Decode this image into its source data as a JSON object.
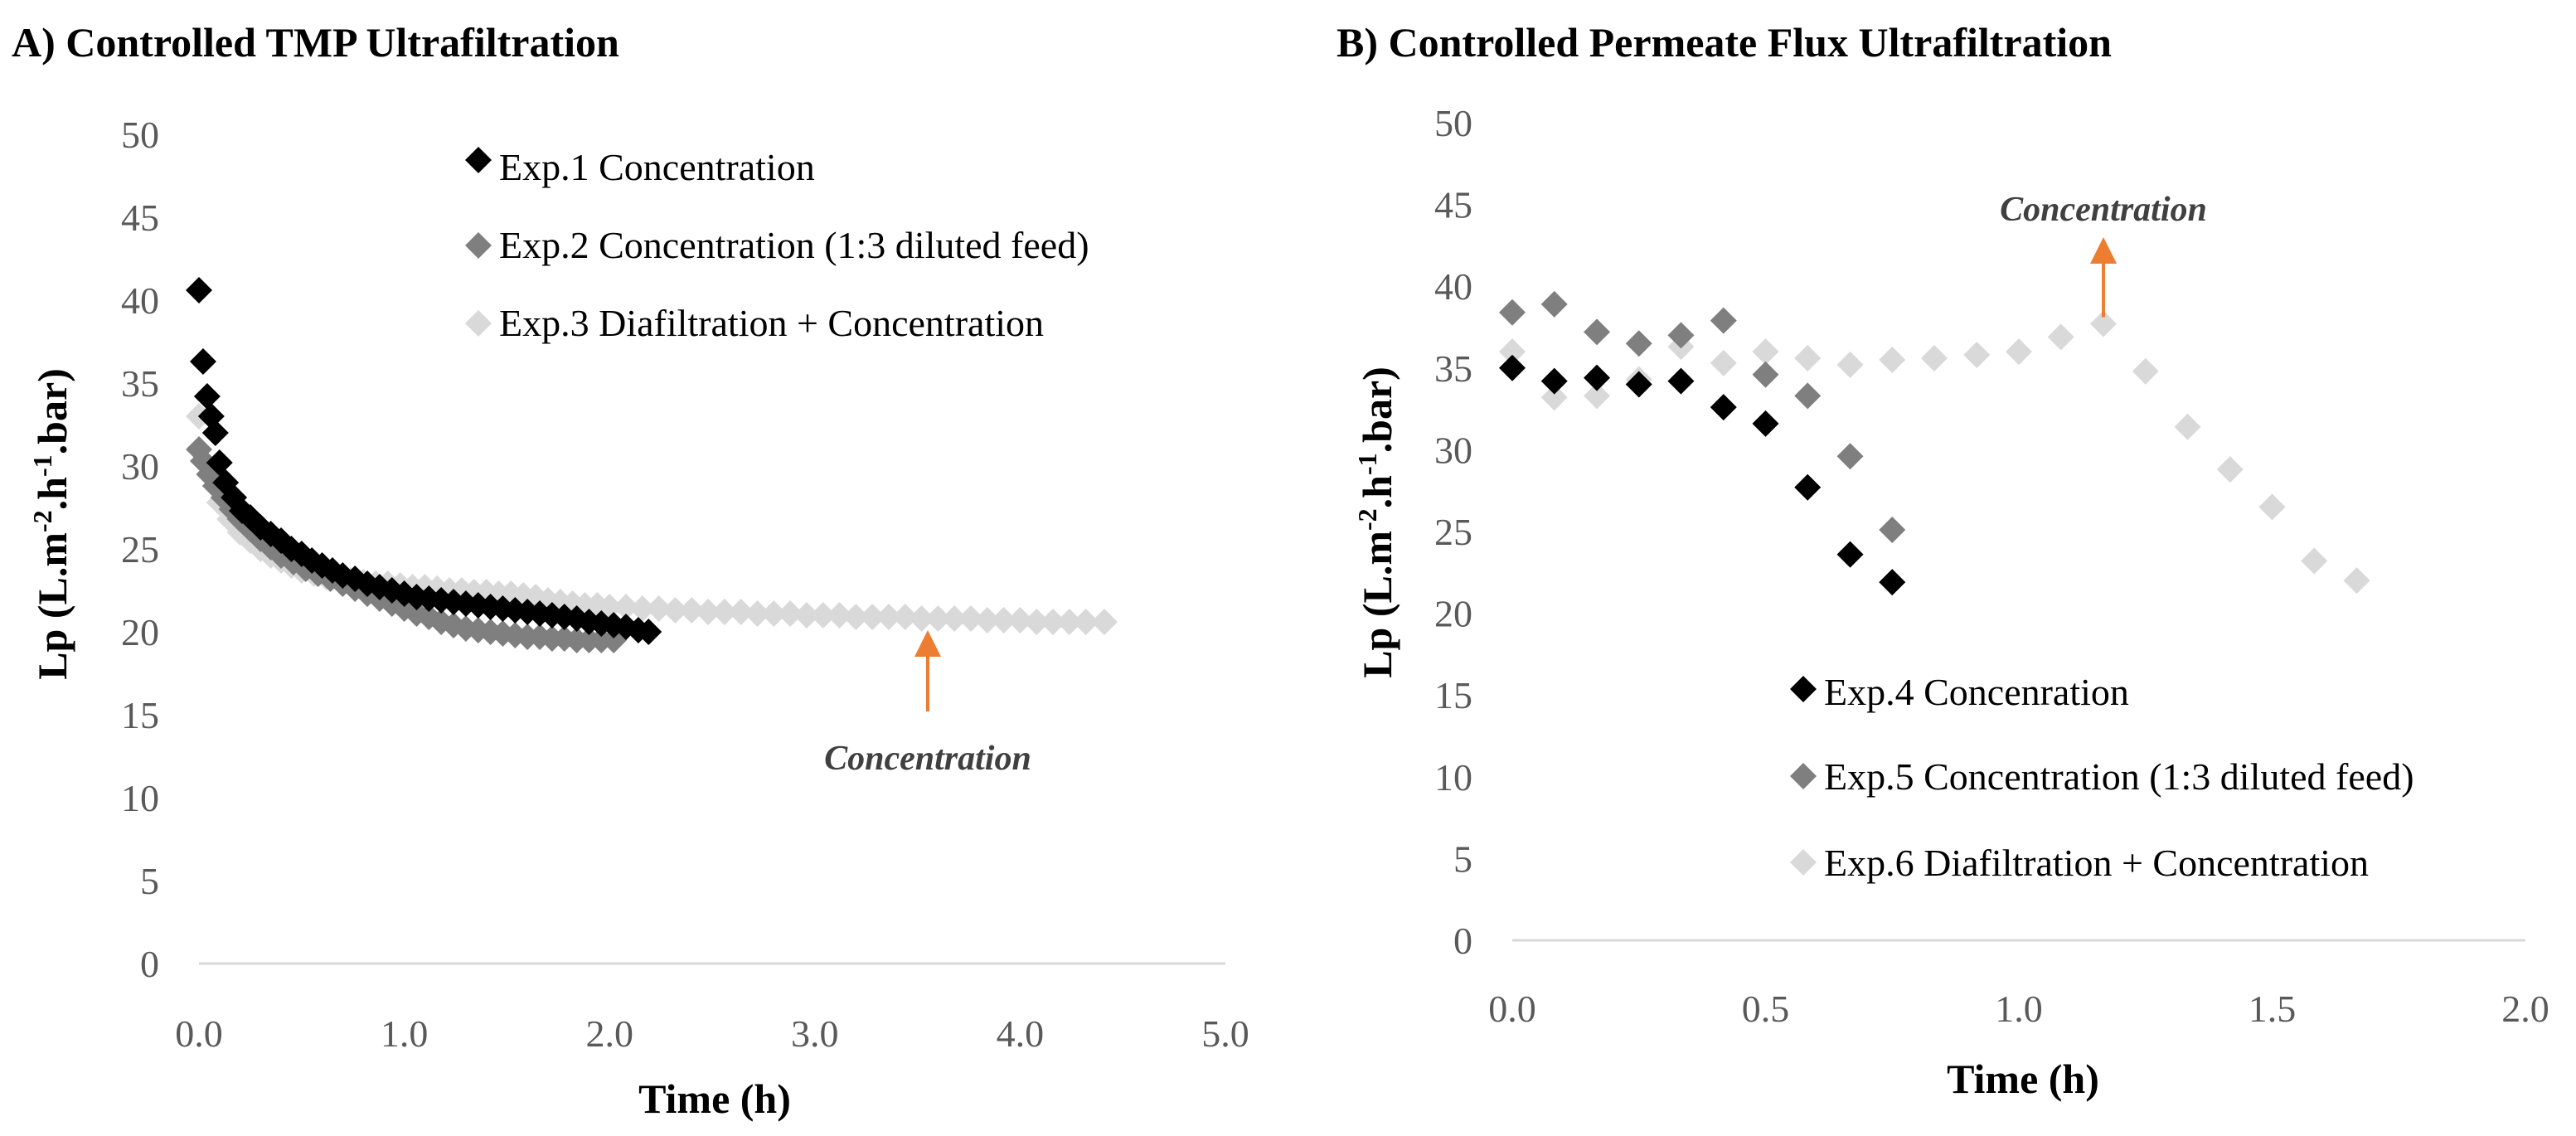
{
  "chart_data": [
    {
      "id": "A",
      "type": "scatter",
      "title": "A) Controlled TMP Ultrafiltration",
      "xlabel": "Time (h)",
      "ylabel_parts": [
        "Lp (L.m",
        "-2",
        ".h",
        "-1",
        ".bar)"
      ],
      "xlim": [
        0,
        5
      ],
      "ylim": [
        0,
        50
      ],
      "xticks": [
        "0.0",
        "1.0",
        "2.0",
        "3.0",
        "4.0",
        "5.0"
      ],
      "yticks": [
        "0",
        "5",
        "10",
        "15",
        "20",
        "25",
        "30",
        "35",
        "40",
        "45",
        "50"
      ],
      "legend_position": "top-right",
      "annotation": {
        "text": "Concentration",
        "x": 3.55,
        "arrow_from_y": 15.2,
        "arrow_to_y": 20.1
      },
      "series": [
        {
          "name": "Exp.1 Concentration",
          "color": "#000000",
          "points": [
            [
              0.0,
              40.6
            ],
            [
              0.02,
              36.3
            ],
            [
              0.04,
              34.2
            ],
            [
              0.06,
              33.0
            ],
            [
              0.08,
              32.0
            ],
            [
              0.1,
              30.2
            ],
            [
              0.13,
              29.0
            ],
            [
              0.17,
              28.1
            ],
            [
              0.21,
              27.3
            ],
            [
              0.25,
              26.9
            ],
            [
              0.3,
              26.3
            ],
            [
              0.35,
              25.9
            ],
            [
              0.4,
              25.5
            ],
            [
              0.45,
              25.0
            ],
            [
              0.5,
              24.7
            ],
            [
              0.55,
              24.3
            ],
            [
              0.6,
              24.0
            ],
            [
              0.65,
              23.7
            ],
            [
              0.7,
              23.4
            ],
            [
              0.76,
              23.2
            ],
            [
              0.82,
              22.9
            ],
            [
              0.88,
              22.7
            ],
            [
              0.94,
              22.5
            ],
            [
              1.0,
              22.3
            ],
            [
              1.06,
              22.1
            ],
            [
              1.12,
              22.0
            ],
            [
              1.18,
              21.9
            ],
            [
              1.24,
              21.8
            ],
            [
              1.3,
              21.7
            ],
            [
              1.36,
              21.6
            ],
            [
              1.42,
              21.5
            ],
            [
              1.48,
              21.4
            ],
            [
              1.54,
              21.3
            ],
            [
              1.6,
              21.2
            ],
            [
              1.66,
              21.1
            ],
            [
              1.72,
              21.0
            ],
            [
              1.78,
              20.9
            ],
            [
              1.84,
              20.8
            ],
            [
              1.9,
              20.6
            ],
            [
              1.96,
              20.5
            ],
            [
              2.02,
              20.4
            ],
            [
              2.08,
              20.3
            ],
            [
              2.14,
              20.1
            ],
            [
              2.19,
              20.0
            ]
          ]
        },
        {
          "name": "Exp.2 Concentration (1:3 diluted feed)",
          "color": "#7f7f7f",
          "points": [
            [
              0.0,
              31.0
            ],
            [
              0.02,
              30.3
            ],
            [
              0.05,
              29.5
            ],
            [
              0.08,
              28.8
            ],
            [
              0.12,
              28.1
            ],
            [
              0.16,
              27.4
            ],
            [
              0.2,
              26.8
            ],
            [
              0.25,
              26.2
            ],
            [
              0.3,
              25.6
            ],
            [
              0.35,
              25.1
            ],
            [
              0.4,
              24.6
            ],
            [
              0.46,
              24.2
            ],
            [
              0.52,
              23.8
            ],
            [
              0.58,
              23.5
            ],
            [
              0.64,
              23.2
            ],
            [
              0.7,
              22.9
            ],
            [
              0.76,
              22.6
            ],
            [
              0.82,
              22.3
            ],
            [
              0.88,
              22.0
            ],
            [
              0.94,
              21.7
            ],
            [
              1.0,
              21.4
            ],
            [
              1.06,
              21.1
            ],
            [
              1.12,
              20.9
            ],
            [
              1.18,
              20.6
            ],
            [
              1.24,
              20.4
            ],
            [
              1.3,
              20.2
            ],
            [
              1.36,
              20.1
            ],
            [
              1.42,
              20.0
            ],
            [
              1.48,
              19.9
            ],
            [
              1.54,
              19.8
            ],
            [
              1.6,
              19.7
            ],
            [
              1.66,
              19.7
            ],
            [
              1.72,
              19.6
            ],
            [
              1.78,
              19.6
            ],
            [
              1.84,
              19.5
            ],
            [
              1.9,
              19.5
            ],
            [
              1.96,
              19.5
            ],
            [
              2.02,
              19.5
            ]
          ]
        },
        {
          "name": "Exp.3 Diafiltration + Concentration",
          "color": "#d9d9d9",
          "points": [
            [
              0.0,
              33.0
            ],
            [
              0.05,
              29.5
            ],
            [
              0.1,
              27.8
            ],
            [
              0.15,
              26.8
            ],
            [
              0.2,
              26.0
            ],
            [
              0.25,
              25.5
            ],
            [
              0.3,
              25.0
            ],
            [
              0.35,
              24.6
            ],
            [
              0.4,
              24.3
            ],
            [
              0.45,
              24.0
            ],
            [
              0.5,
              23.7
            ],
            [
              0.56,
              23.5
            ],
            [
              0.62,
              23.3
            ],
            [
              0.68,
              23.2
            ],
            [
              0.74,
              23.1
            ],
            [
              0.8,
              23.0
            ],
            [
              0.86,
              22.9
            ],
            [
              0.92,
              22.9
            ],
            [
              0.98,
              22.8
            ],
            [
              1.04,
              22.7
            ],
            [
              1.1,
              22.7
            ],
            [
              1.16,
              22.6
            ],
            [
              1.22,
              22.5
            ],
            [
              1.28,
              22.5
            ],
            [
              1.34,
              22.4
            ],
            [
              1.4,
              22.4
            ],
            [
              1.46,
              22.3
            ],
            [
              1.52,
              22.3
            ],
            [
              1.58,
              22.2
            ],
            [
              1.64,
              22.1
            ],
            [
              1.7,
              21.9
            ],
            [
              1.76,
              21.8
            ],
            [
              1.82,
              21.7
            ],
            [
              1.88,
              21.6
            ],
            [
              1.94,
              21.6
            ],
            [
              2.0,
              21.5
            ],
            [
              2.08,
              21.5
            ],
            [
              2.16,
              21.4
            ],
            [
              2.24,
              21.4
            ],
            [
              2.32,
              21.3
            ],
            [
              2.4,
              21.3
            ],
            [
              2.48,
              21.2
            ],
            [
              2.56,
              21.2
            ],
            [
              2.64,
              21.2
            ],
            [
              2.72,
              21.1
            ],
            [
              2.8,
              21.1
            ],
            [
              2.88,
              21.1
            ],
            [
              2.96,
              21.0
            ],
            [
              3.04,
              21.0
            ],
            [
              3.12,
              21.0
            ],
            [
              3.2,
              20.9
            ],
            [
              3.28,
              20.9
            ],
            [
              3.36,
              20.9
            ],
            [
              3.44,
              20.9
            ],
            [
              3.52,
              20.8
            ],
            [
              3.6,
              20.8
            ],
            [
              3.68,
              20.8
            ],
            [
              3.76,
              20.8
            ],
            [
              3.84,
              20.7
            ],
            [
              3.92,
              20.7
            ],
            [
              4.0,
              20.7
            ],
            [
              4.08,
              20.6
            ],
            [
              4.16,
              20.6
            ],
            [
              4.24,
              20.6
            ],
            [
              4.32,
              20.6
            ],
            [
              4.41,
              20.6
            ]
          ]
        }
      ]
    },
    {
      "id": "B",
      "type": "scatter",
      "title": "B) Controlled Permeate Flux Ultrafiltration",
      "xlabel": "Time (h)",
      "ylabel_parts": [
        "Lp (L.m",
        "-2",
        ".h",
        "-1",
        ".bar)"
      ],
      "xlim": [
        0,
        2
      ],
      "ylim": [
        0,
        50
      ],
      "xticks": [
        "0.0",
        "0.5",
        "1.0",
        "1.5",
        "2.0"
      ],
      "yticks": [
        "0",
        "5",
        "10",
        "15",
        "20",
        "25",
        "30",
        "35",
        "40",
        "45",
        "50"
      ],
      "legend_position": "bottom-right",
      "annotation": {
        "text": "Concentration",
        "x": 1.167,
        "arrow_from_y": 38.1,
        "arrow_to_y": 43.0
      },
      "series": [
        {
          "name": "Exp.4 Concenration",
          "color": "#000000",
          "points": [
            [
              0.0,
              35.0
            ],
            [
              0.083,
              34.2
            ],
            [
              0.167,
              34.4
            ],
            [
              0.25,
              34.0
            ],
            [
              0.333,
              34.2
            ],
            [
              0.417,
              32.6
            ],
            [
              0.5,
              31.6
            ],
            [
              0.583,
              27.7
            ],
            [
              0.667,
              23.6
            ],
            [
              0.75,
              21.9
            ]
          ]
        },
        {
          "name": "Exp.5 Concentration (1:3 diluted feed)",
          "color": "#7f7f7f",
          "points": [
            [
              0.0,
              38.4
            ],
            [
              0.083,
              38.9
            ],
            [
              0.167,
              37.2
            ],
            [
              0.25,
              36.5
            ],
            [
              0.333,
              37.0
            ],
            [
              0.417,
              37.9
            ],
            [
              0.5,
              34.6
            ],
            [
              0.583,
              33.3
            ],
            [
              0.667,
              29.6
            ],
            [
              0.75,
              25.1
            ]
          ]
        },
        {
          "name": "Exp.6 Diafiltration + Concentration",
          "color": "#d9d9d9",
          "points": [
            [
              0.0,
              36.0
            ],
            [
              0.083,
              33.2
            ],
            [
              0.167,
              33.3
            ],
            [
              0.25,
              34.3
            ],
            [
              0.333,
              36.3
            ],
            [
              0.417,
              35.3
            ],
            [
              0.5,
              36.0
            ],
            [
              0.583,
              35.6
            ],
            [
              0.667,
              35.2
            ],
            [
              0.75,
              35.5
            ],
            [
              0.833,
              35.6
            ],
            [
              0.917,
              35.8
            ],
            [
              1.0,
              36.0
            ],
            [
              1.083,
              36.9
            ],
            [
              1.167,
              37.7
            ],
            [
              1.25,
              34.8
            ],
            [
              1.333,
              31.4
            ],
            [
              1.417,
              28.8
            ],
            [
              1.5,
              26.5
            ],
            [
              1.583,
              23.2
            ],
            [
              1.667,
              22.0
            ]
          ]
        }
      ]
    }
  ]
}
